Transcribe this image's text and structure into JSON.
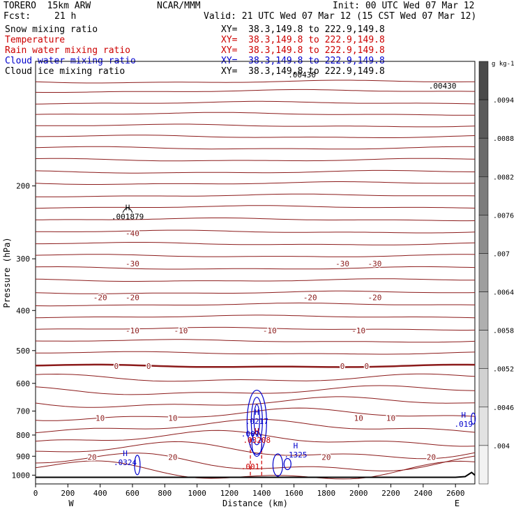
{
  "header": {
    "model": "TORERO  15km ARW",
    "center": "NCAR/MMM",
    "init": "Init: 00 UTC Wed 07 Mar 12",
    "fcst_label": "Fcst:",
    "fcst_value": "21 h",
    "valid": "Valid: 21 UTC Wed 07 Mar 12 (15 CST Wed 07 Mar 12)"
  },
  "fields": [
    {
      "name": "Snow mixing ratio",
      "xy": "XY=  38.3,149.8 to 222.9,149.8",
      "color": "#000000"
    },
    {
      "name": "Temperature",
      "xy": "XY=  38.3,149.8 to 222.9,149.8",
      "color": "#cc0000"
    },
    {
      "name": "Rain water mixing ratio",
      "xy": "XY=  38.3,149.8 to 222.9,149.8",
      "color": "#cc0000"
    },
    {
      "name": "Cloud water mixing ratio",
      "xy": "XY=  38.3,149.8 to 222.9,149.8",
      "color": "#0000cc"
    },
    {
      "name": "Cloud ice mixing ratio",
      "xy": "XY=  38.3,149.8 to 222.9,149.8",
      "color": "#000000"
    }
  ],
  "chart_data": {
    "type": "cross-section contour",
    "ylabel": "Pressure (hPa)",
    "xlabel": "Distance (km)",
    "x_ticks": [
      "0",
      "200",
      "400",
      "600",
      "800",
      "1000",
      "1200",
      "1400",
      "1600",
      "1800",
      "2000",
      "2200",
      "2400",
      "2600"
    ],
    "x_values": [
      0,
      200,
      400,
      600,
      800,
      1000,
      1200,
      1400,
      1600,
      1800,
      2000,
      2200,
      2400,
      2600
    ],
    "y_ticks": [
      "200",
      "300",
      "400",
      "500",
      "600",
      "700",
      "800",
      "900",
      "1000"
    ],
    "y_values": [
      200,
      300,
      400,
      500,
      600,
      700,
      800,
      900,
      1000
    ],
    "xlim": [
      0,
      2720
    ],
    "ylim": [
      1050,
      100
    ],
    "west_label": "W",
    "east_label": "E",
    "colorbar": {
      "unit": "g kg-1",
      "labels": [
        ".0094",
        ".0088",
        ".0082",
        ".0076",
        ".007",
        ".0064",
        ".0058",
        ".0052",
        ".0046",
        ".004"
      ],
      "values": [
        0.0094,
        0.0088,
        0.0082,
        0.0076,
        0.007,
        0.0064,
        0.0058,
        0.0052,
        0.0046,
        0.004
      ],
      "colors": [
        "#4a4a4a",
        "#5a5a5a",
        "#6b6b6b",
        "#7c7c7c",
        "#8d8d8d",
        "#9e9e9e",
        "#afafaf",
        "#c0c0c0",
        "#d1d1d1",
        "#e2e2e2",
        "#f2f2f2"
      ]
    },
    "temperature_contours": [
      {
        "label": "-40",
        "pressure": 260,
        "positions": [
          600
        ]
      },
      {
        "label": "-30",
        "pressure": 308,
        "positions": [
          600,
          1900,
          2100
        ]
      },
      {
        "label": "-20",
        "pressure": 372,
        "positions": [
          400,
          600,
          1700,
          2100
        ]
      },
      {
        "label": "-10",
        "pressure": 447,
        "positions": [
          600,
          900,
          1450,
          2000
        ]
      },
      {
        "label": "0",
        "pressure": 545,
        "positions": [
          500,
          700,
          1900,
          2050
        ]
      },
      {
        "label": "10",
        "pressure": 728,
        "positions": [
          400,
          850,
          2000,
          2200
        ]
      },
      {
        "label": "20",
        "pressure": 905,
        "positions": [
          350,
          850,
          1800,
          2450
        ]
      }
    ],
    "annotations": [
      {
        "text": "H",
        "value": ".001879",
        "color": "#000000",
        "x": 570,
        "p": 238
      },
      {
        "text": "H",
        "value": ".0217",
        "color": "#0000cc",
        "x": 1370,
        "p": 743
      },
      {
        "text": "H",
        "value": ".019",
        "color": "#0000cc",
        "x": 2650,
        "p": 755
      },
      {
        "text": "H",
        "value": ".0324",
        "color": "#0000cc",
        "x": 555,
        "p": 935
      },
      {
        "text": "H",
        "value": ".1325",
        "color": "#0000cc",
        "x": 1610,
        "p": 895
      },
      {
        "text": "H",
        "value": ".03208",
        "color": "#cc0000",
        "x": 1370,
        "p": 825
      },
      {
        "text": "",
        "value": ".001",
        "color": "#0000cc",
        "x": 1330,
        "p": 797
      },
      {
        "text": "",
        "value": ".001",
        "color": "#cc0000",
        "x": 1330,
        "p": 956
      },
      {
        "text": "",
        "value": ".00430",
        "color": "#000000",
        "x": 2520,
        "p": 115
      },
      {
        "text": "",
        "value": ".00430",
        "color": "#000000",
        "x": 1650,
        "p": 108
      }
    ],
    "snow_contour_label": ".00430"
  }
}
